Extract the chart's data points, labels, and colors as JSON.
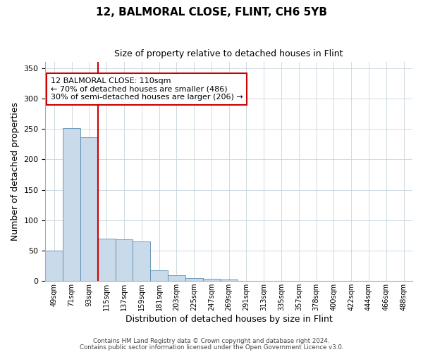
{
  "title": "12, BALMORAL CLOSE, FLINT, CH6 5YB",
  "subtitle": "Size of property relative to detached houses in Flint",
  "xlabel": "Distribution of detached houses by size in Flint",
  "ylabel": "Number of detached properties",
  "bar_values": [
    50,
    252,
    237,
    70,
    68,
    65,
    17,
    9,
    5,
    4,
    3,
    0,
    0,
    0,
    0,
    0,
    0,
    0,
    0,
    0,
    0
  ],
  "bar_labels": [
    "49sqm",
    "71sqm",
    "93sqm",
    "115sqm",
    "137sqm",
    "159sqm",
    "181sqm",
    "203sqm",
    "225sqm",
    "247sqm",
    "269sqm",
    "291sqm",
    "313sqm",
    "335sqm",
    "357sqm",
    "378sqm",
    "400sqm",
    "422sqm",
    "444sqm",
    "466sqm",
    "488sqm"
  ],
  "bar_color": "#c9daea",
  "bar_edge_color": "#5a8cb0",
  "vline_color": "#cc0000",
  "ylim": [
    0,
    360
  ],
  "yticks": [
    0,
    50,
    100,
    150,
    200,
    250,
    300,
    350
  ],
  "annotation_title": "12 BALMORAL CLOSE: 110sqm",
  "annotation_line1": "← 70% of detached houses are smaller (486)",
  "annotation_line2": "30% of semi-detached houses are larger (206) →",
  "annotation_box_color": "#ffffff",
  "annotation_box_edge": "#cc0000",
  "footer1": "Contains HM Land Registry data © Crown copyright and database right 2024.",
  "footer2": "Contains public sector information licensed under the Open Government Licence v3.0.",
  "background_color": "#ffffff",
  "grid_color": "#c8d4dc"
}
